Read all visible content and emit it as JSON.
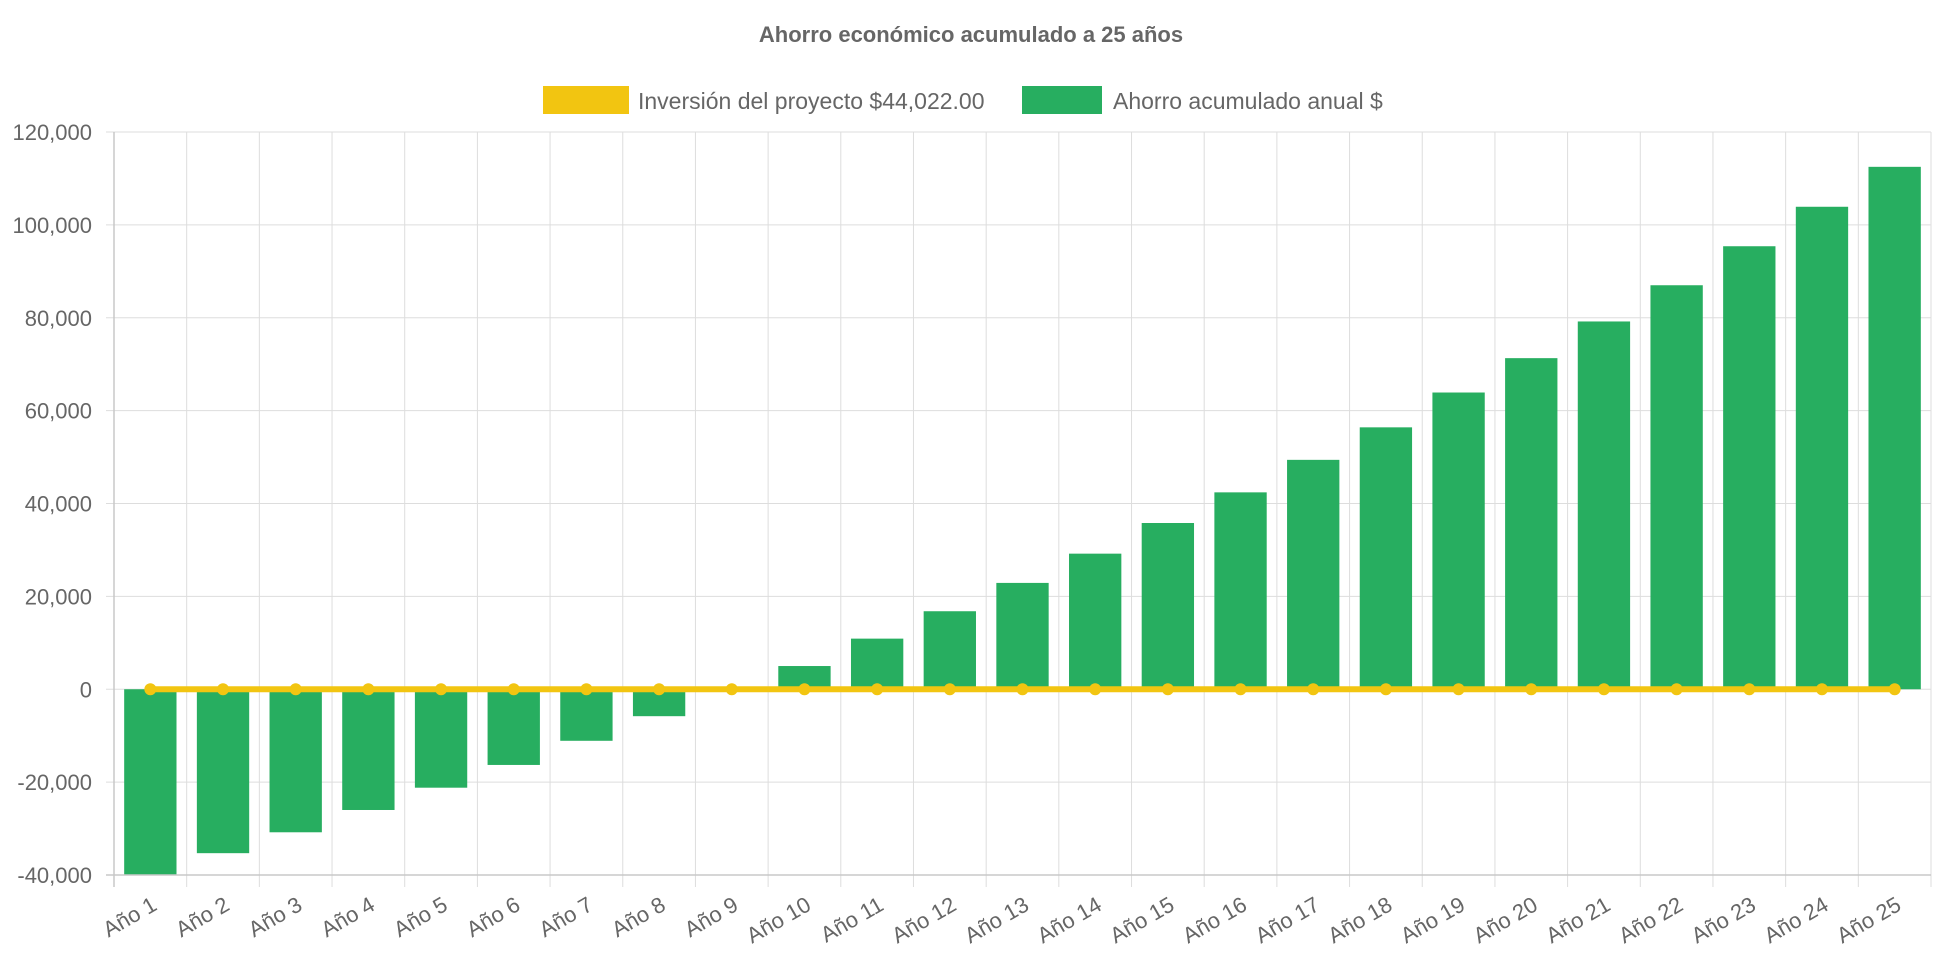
{
  "chart_data": {
    "type": "bar",
    "title": "Ahorro económico acumulado a 25 años",
    "categories": [
      "Año 1",
      "Año 2",
      "Año 3",
      "Año 4",
      "Año 5",
      "Año 6",
      "Año 7",
      "Año 8",
      "Año 9",
      "Año 10",
      "Año 11",
      "Año 12",
      "Año 13",
      "Año 14",
      "Año 15",
      "Año 16",
      "Año 17",
      "Año 18",
      "Año 19",
      "Año 20",
      "Año 21",
      "Año 22",
      "Año 23",
      "Año 24",
      "Año 25"
    ],
    "series": [
      {
        "name": "Inversión del proyecto $44,022.00",
        "type": "line",
        "color": "#f2c511",
        "values": [
          0,
          0,
          0,
          0,
          0,
          0,
          0,
          0,
          0,
          0,
          0,
          0,
          0,
          0,
          0,
          0,
          0,
          0,
          0,
          0,
          0,
          0,
          0,
          0,
          0
        ]
      },
      {
        "name": "Ahorro acumulado anual $",
        "type": "bar",
        "color": "#27ae60",
        "values": [
          -40000,
          -35300,
          -30800,
          -26000,
          -21200,
          -16300,
          -11100,
          -5800,
          0,
          5000,
          10900,
          16800,
          22900,
          29200,
          35800,
          42400,
          49400,
          56400,
          63900,
          71300,
          79200,
          87000,
          95400,
          103900,
          112500
        ]
      }
    ],
    "ylim": [
      -40000,
      120000
    ],
    "y_ticks": [
      "120,000",
      "100,000",
      "80,000",
      "60,000",
      "40,000",
      "20,000",
      "0",
      "-20,000",
      "-40,000"
    ],
    "y_tick_values": [
      120000,
      100000,
      80000,
      60000,
      40000,
      20000,
      0,
      -20000,
      -40000
    ],
    "grid": true,
    "legend_position": "top"
  }
}
